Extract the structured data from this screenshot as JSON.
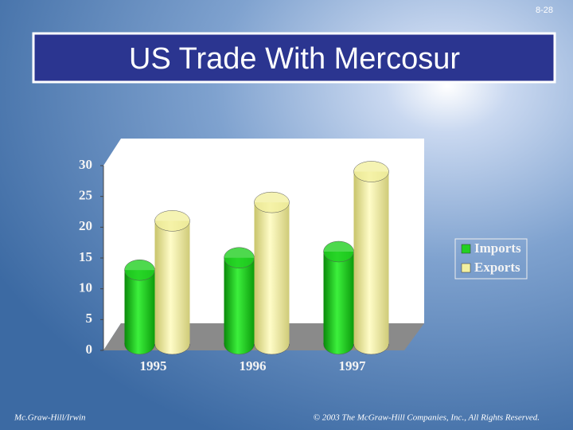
{
  "slide_number": "8-28",
  "footer_left": "Mc.Graw-Hill/Irwin",
  "footer_right": "© 2003 The McGraw-Hill Companies, Inc., All Rights Reserved.",
  "chart_data": {
    "type": "cylinder-bar",
    "title": "US Trade With Mercosur",
    "categories": [
      "1995",
      "1996",
      "1997"
    ],
    "series": [
      {
        "name": "Imports",
        "color": "#22d022",
        "values": [
          12,
          14,
          15
        ]
      },
      {
        "name": "Exports",
        "color": "#f2f0a0",
        "values": [
          20,
          23,
          28
        ]
      }
    ],
    "ylim": [
      0,
      30
    ],
    "yticks": [
      0,
      5,
      10,
      15,
      20,
      25,
      30
    ],
    "grid": false,
    "legend": "right"
  }
}
